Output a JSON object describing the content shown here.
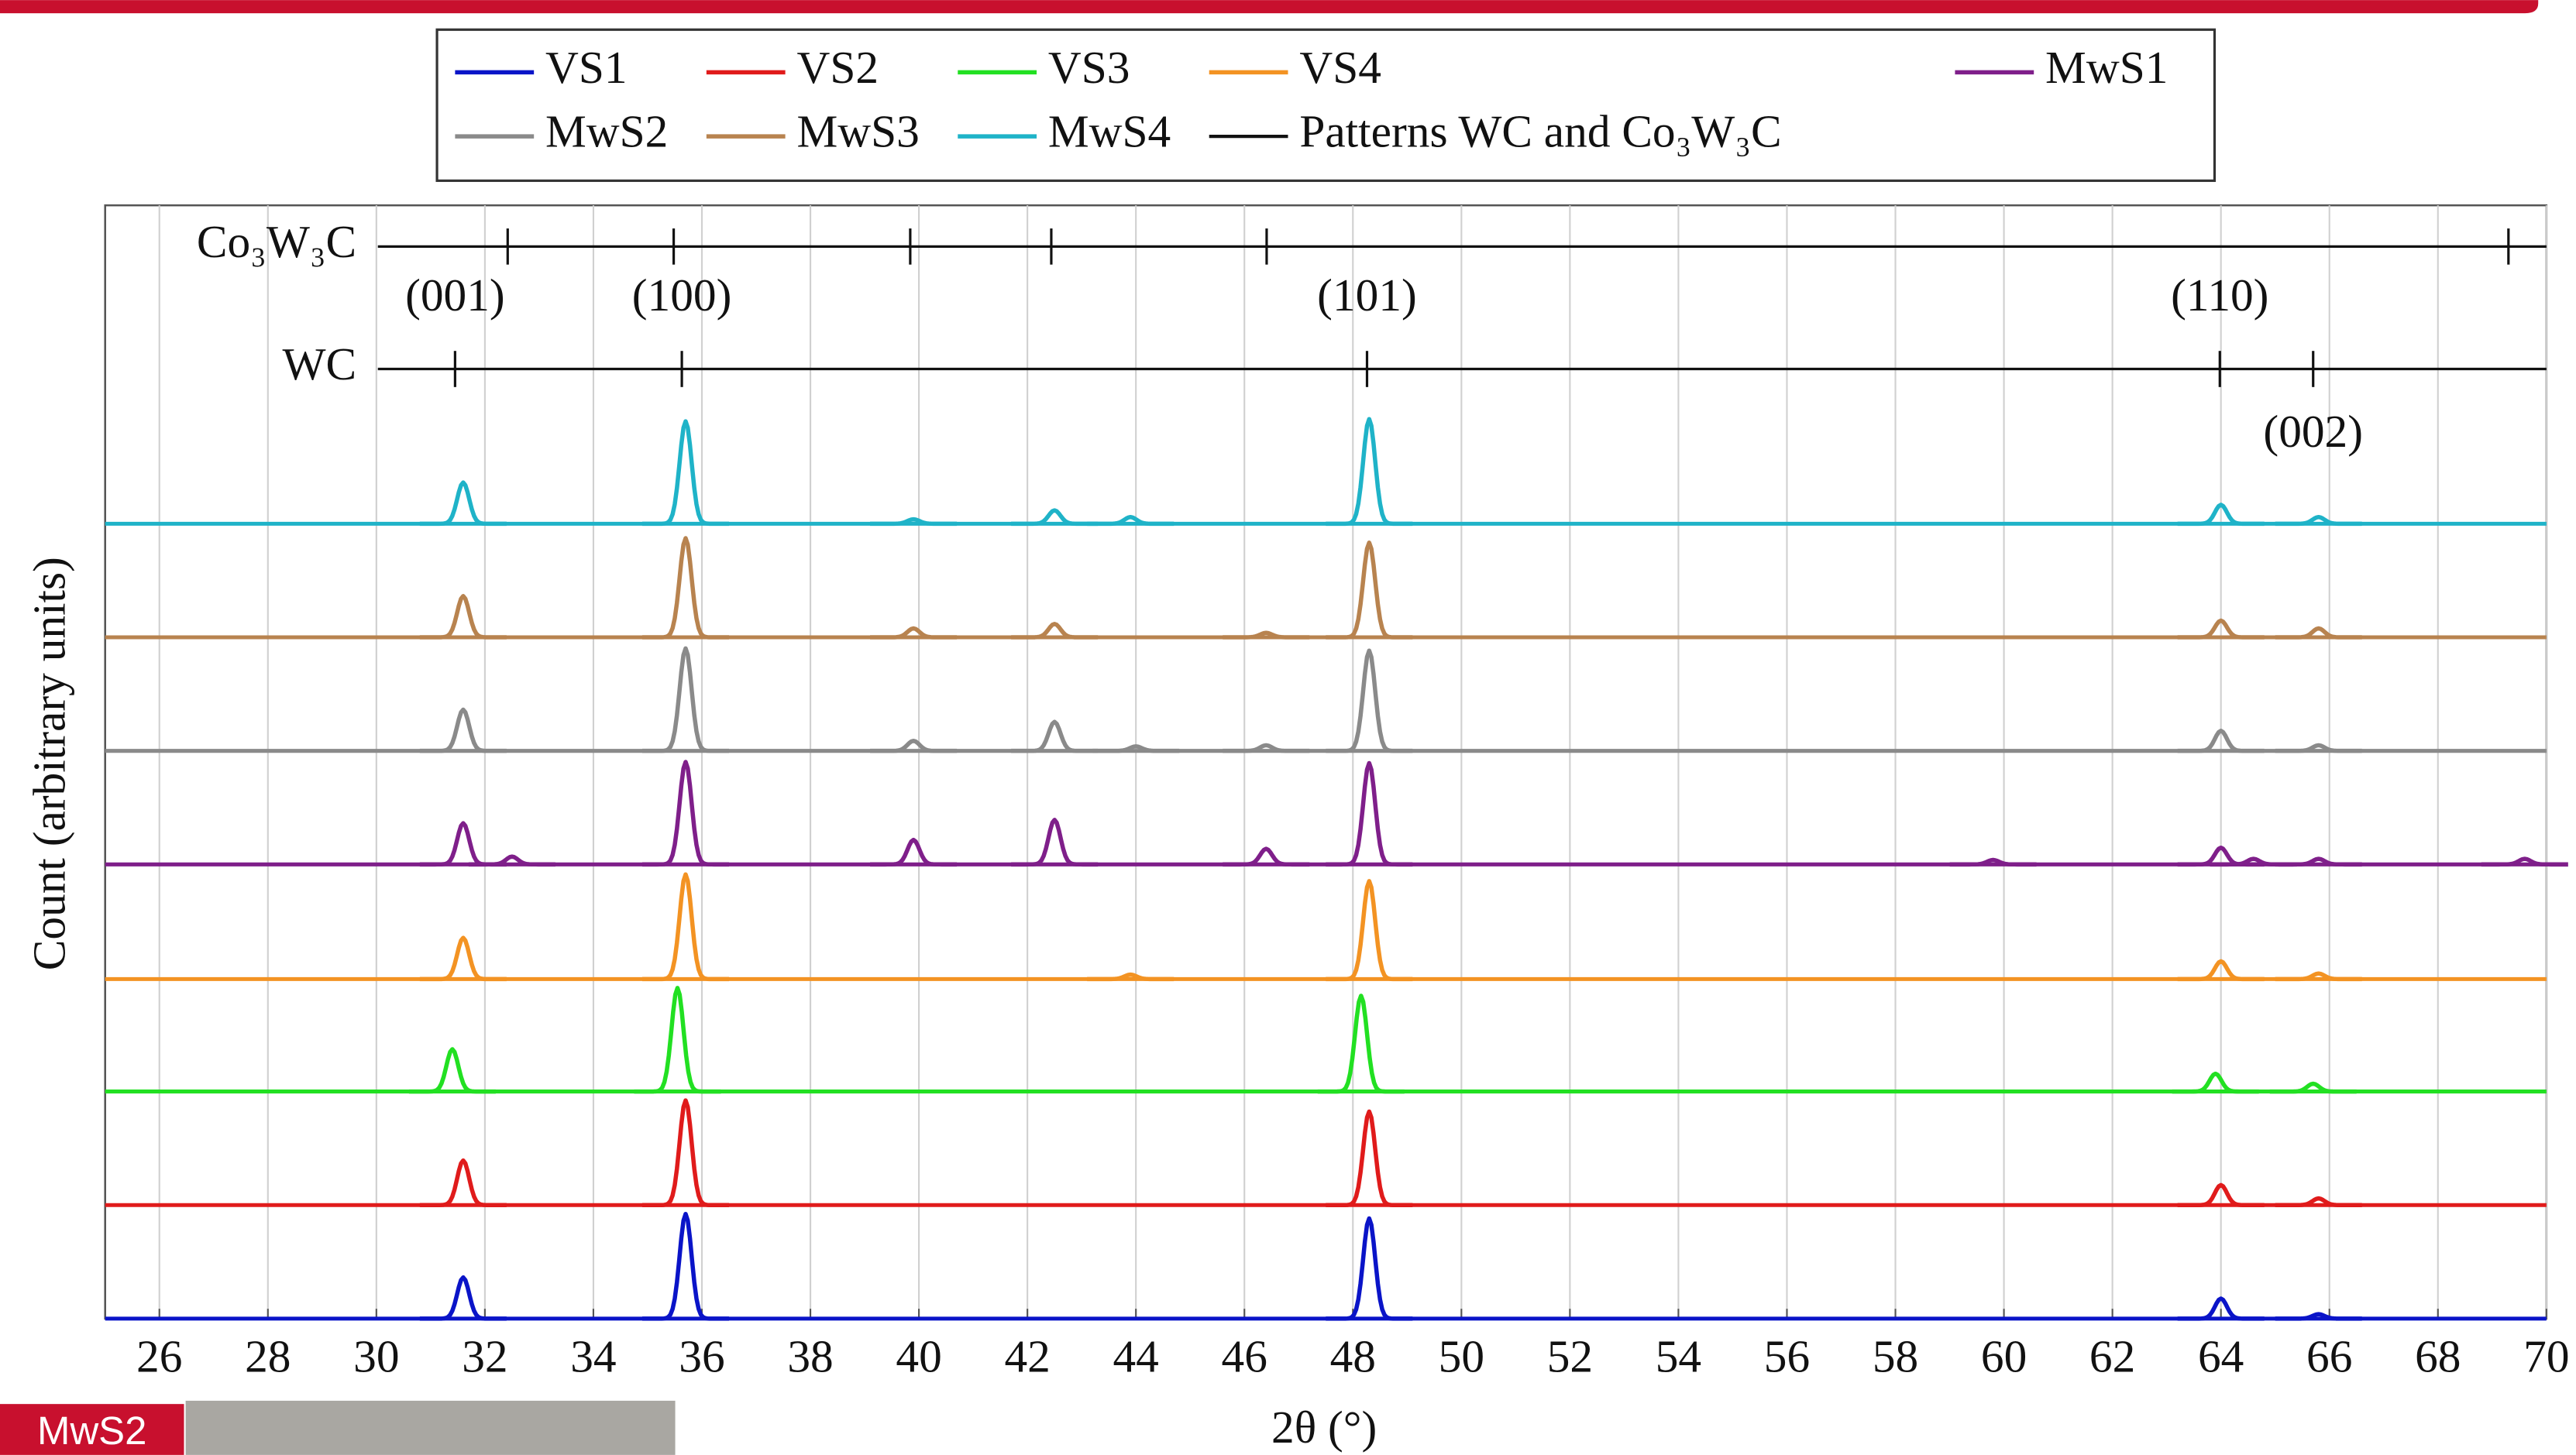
{
  "chart_data": {
    "type": "line",
    "xlabel": "2θ (°)",
    "ylabel": "Count (arbitrary units)",
    "xlim": [
      25,
      70
    ],
    "ylim": [
      0,
      100
    ],
    "xticks": [
      26,
      28,
      30,
      32,
      34,
      36,
      38,
      40,
      42,
      44,
      46,
      48,
      50,
      52,
      54,
      56,
      58,
      60,
      62,
      64,
      66,
      68,
      70
    ],
    "grid": true,
    "series": [
      {
        "name": "VS1",
        "color": "#0a14c8",
        "baseline": 0,
        "peaks": {
          "x": [
            31.6,
            35.7,
            48.3,
            64.0,
            65.8
          ],
          "height": [
            3.7,
            9.4,
            9.0,
            1.8,
            0.4
          ]
        }
      },
      {
        "name": "VS2",
        "color": "#e01b1b",
        "baseline": 10.2,
        "peaks": {
          "x": [
            31.6,
            35.7,
            48.3,
            64.0,
            65.8
          ],
          "height": [
            4.0,
            9.4,
            8.4,
            1.8,
            0.6
          ]
        }
      },
      {
        "name": "VS3",
        "color": "#22e022",
        "baseline": 20.4,
        "peaks": {
          "x": [
            31.4,
            35.55,
            48.15,
            63.9,
            65.7
          ],
          "height": [
            3.8,
            9.3,
            8.6,
            1.6,
            0.7
          ]
        }
      },
      {
        "name": "VS4",
        "color": "#f39323",
        "baseline": 30.5,
        "peaks": {
          "x": [
            31.6,
            35.7,
            43.9,
            48.3,
            64.0,
            65.8
          ],
          "height": [
            3.7,
            9.4,
            0.4,
            8.8,
            1.6,
            0.5
          ]
        }
      },
      {
        "name": "MwS1",
        "color": "#7f1f8a",
        "baseline": 40.8,
        "peaks": {
          "x": [
            31.6,
            32.5,
            35.7,
            39.9,
            42.5,
            46.4,
            48.3,
            59.8,
            64.0,
            64.6,
            65.8,
            69.6
          ],
          "height": [
            3.7,
            0.7,
            9.2,
            2.2,
            4.0,
            1.4,
            9.1,
            0.4,
            1.5,
            0.5,
            0.5,
            0.5
          ]
        }
      },
      {
        "name": "MwS2",
        "color": "#8a8a8a",
        "baseline": 51.0,
        "peaks": {
          "x": [
            31.6,
            35.7,
            39.9,
            42.5,
            44.0,
            46.4,
            48.3,
            64.0,
            65.8
          ],
          "height": [
            3.7,
            9.2,
            0.9,
            2.6,
            0.4,
            0.5,
            9.0,
            1.8,
            0.5
          ]
        }
      },
      {
        "name": "MwS3",
        "color": "#b8834f",
        "baseline": 61.2,
        "peaks": {
          "x": [
            31.6,
            35.7,
            39.9,
            42.5,
            46.4,
            48.3,
            64.0,
            65.8
          ],
          "height": [
            3.7,
            8.9,
            0.8,
            1.2,
            0.4,
            8.5,
            1.5,
            0.8
          ]
        }
      },
      {
        "name": "MwS4",
        "color": "#1fb3c8",
        "baseline": 71.4,
        "peaks": {
          "x": [
            31.6,
            35.7,
            39.9,
            42.5,
            43.9,
            48.3,
            64.0,
            65.8
          ],
          "height": [
            3.7,
            9.2,
            0.4,
            1.2,
            0.6,
            9.4,
            1.7,
            0.6
          ]
        }
      }
    ],
    "patterns": [
      {
        "name": "Co₃W₃C",
        "level": 96.3,
        "positions": [
          32.42,
          35.48,
          39.84,
          42.44,
          46.41,
          69.3
        ]
      },
      {
        "name": "WC",
        "level": 85.3,
        "positions": [
          31.45,
          35.63,
          48.26,
          63.98,
          65.7
        ],
        "labels": [
          "(001)",
          "(100)",
          "(101)",
          "(110)",
          "(002)"
        ]
      }
    ],
    "pattern_legend": "Patterns WC and Co₃W₃C"
  },
  "slide_label": "MwS2"
}
